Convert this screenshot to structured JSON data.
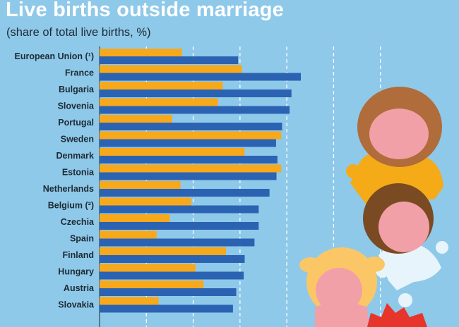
{
  "title": "Live births outside marriage",
  "subtitle": "(share of total live births, %)",
  "chart_data": {
    "type": "bar",
    "orientation": "horizontal",
    "title": "Live births outside marriage",
    "subtitle": "(share of total live births, %)",
    "xlim": [
      0,
      70
    ],
    "grid": true,
    "categories": [
      "European Union (¹)",
      "France",
      "Bulgaria",
      "Slovenia",
      "Portugal",
      "Sweden",
      "Denmark",
      "Estonia",
      "Netherlands",
      "Belgium (²)",
      "Czechia",
      "Spain",
      "Finland",
      "Hungary",
      "Austria",
      "Slovakia"
    ],
    "series": [
      {
        "values": [
          17.6,
          30.4,
          26.3,
          25.3,
          15.5,
          38.8,
          31.0,
          38.8,
          17.3,
          19.6,
          15.0,
          12.2,
          27.0,
          20.5,
          22.2,
          12.6
        ],
        "color": "#f7a81b"
      },
      {
        "values": [
          29.6,
          43.0,
          41.0,
          40.6,
          39.0,
          37.7,
          38.0,
          37.8,
          36.3,
          34.0,
          34.0,
          33.1,
          31.0,
          30.8,
          29.2,
          28.5
        ],
        "color": "#2b63b2"
      }
    ]
  },
  "colors": {
    "background": "#8ec9ea",
    "series_orange": "#f7a81b",
    "series_blue": "#2b63b2",
    "title": "#ffffff"
  }
}
